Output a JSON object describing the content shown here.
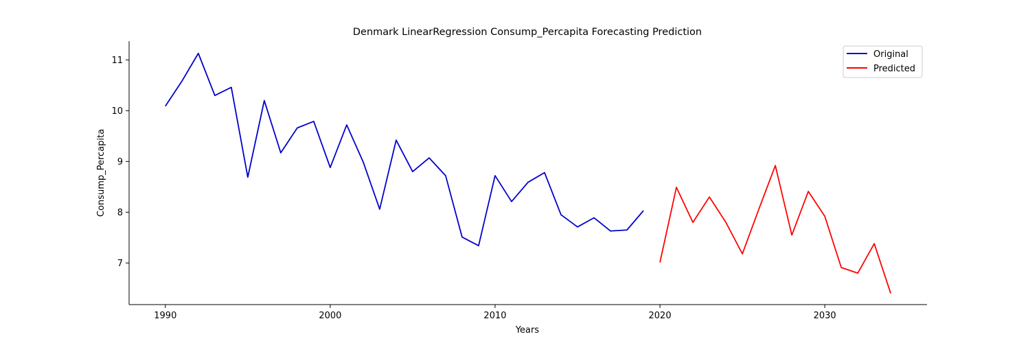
{
  "chart_data": {
    "type": "line",
    "title": "Denmark LinearRegression Consump_Percapita Forecasting Prediction",
    "xlabel": "Years",
    "ylabel": "Consump_Percapita",
    "xlim": [
      1987.8,
      2036.2
    ],
    "ylim": [
      6.18,
      11.37
    ],
    "xticks": [
      1990,
      2000,
      2010,
      2020,
      2030
    ],
    "yticks": [
      7,
      8,
      9,
      10,
      11
    ],
    "grid": false,
    "legend_position": "top-right",
    "series": [
      {
        "name": "Original",
        "color": "#0000cc",
        "x": [
          1990,
          1991,
          1992,
          1993,
          1994,
          1995,
          1996,
          1997,
          1998,
          1999,
          2000,
          2001,
          2002,
          2003,
          2004,
          2005,
          2006,
          2007,
          2008,
          2009,
          2010,
          2011,
          2012,
          2013,
          2014,
          2015,
          2016,
          2017,
          2018,
          2019
        ],
        "y": [
          10.09,
          10.58,
          11.13,
          10.3,
          10.46,
          8.69,
          10.2,
          9.17,
          9.66,
          9.79,
          8.88,
          9.72,
          8.99,
          8.06,
          9.42,
          8.8,
          9.07,
          8.72,
          7.51,
          7.34,
          8.72,
          8.21,
          8.59,
          8.78,
          7.95,
          7.71,
          7.89,
          7.63,
          7.65,
          8.03
        ]
      },
      {
        "name": "Predicted",
        "color": "#ff0000",
        "x": [
          2020,
          2021,
          2022,
          2023,
          2024,
          2025,
          2026,
          2027,
          2028,
          2029,
          2030,
          2031,
          2032,
          2033,
          2034
        ],
        "y": [
          7.01,
          8.49,
          7.8,
          8.3,
          7.8,
          7.18,
          8.06,
          8.92,
          7.55,
          8.41,
          7.92,
          6.91,
          6.8,
          7.38,
          6.4
        ]
      }
    ]
  }
}
